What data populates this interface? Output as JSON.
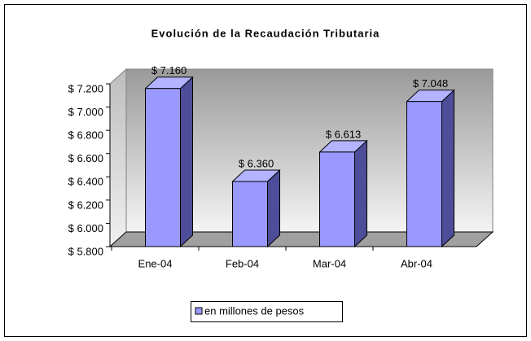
{
  "chart_data": {
    "type": "bar3d",
    "title": "Evolución de la Recaudación Tributaria",
    "categories": [
      "Ene-04",
      "Feb-04",
      "Mar-04",
      "Abr-04"
    ],
    "series": [
      {
        "name": "en millones de pesos",
        "color": "#9999ff",
        "values": [
          7160,
          6360,
          6613,
          7048
        ],
        "value_labels": [
          "$ 7.160",
          "$ 6.360",
          "$ 6.613",
          "$ 7.048"
        ]
      }
    ],
    "ylim": [
      5800,
      7200
    ],
    "yticks": [
      {
        "value": 5800,
        "label": "$ 5.800"
      },
      {
        "value": 6000,
        "label": "$ 6.000"
      },
      {
        "value": 6200,
        "label": "$ 6.200"
      },
      {
        "value": 6400,
        "label": "$ 6.400"
      },
      {
        "value": 6600,
        "label": "$ 6.600"
      },
      {
        "value": 6800,
        "label": "$ 6.800"
      },
      {
        "value": 7000,
        "label": "$ 7.000"
      },
      {
        "value": 7200,
        "label": "$ 7.200"
      }
    ],
    "legend": "bottom"
  }
}
